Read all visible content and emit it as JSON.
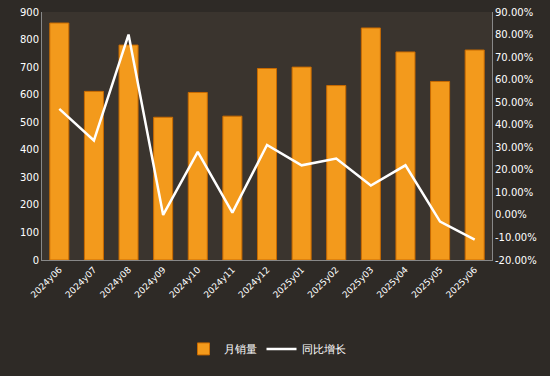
{
  "chart_data": {
    "type": "bar",
    "categories": [
      "2024y06",
      "2024y07",
      "2024y08",
      "2024y09",
      "2024y10",
      "2024y11",
      "2024y12",
      "2025y01",
      "2025y02",
      "2025y03",
      "2025y04",
      "2025y05",
      "2025y06"
    ],
    "series": [
      {
        "name": "月销量",
        "type": "bar",
        "color": "#f39a1c",
        "values": [
          860,
          612,
          780,
          518,
          608,
          522,
          695,
          700,
          633,
          842,
          755,
          648,
          762
        ]
      },
      {
        "name": "同比增长",
        "type": "line",
        "color": "#ffffff",
        "axis": "y2",
        "line_style": "solid",
        "values": [
          47,
          33,
          80,
          0,
          28,
          1,
          31,
          22,
          25,
          13,
          22,
          -3,
          -11
        ]
      }
    ],
    "ylim": [
      0,
      900
    ],
    "yticks": [
      0,
      100,
      200,
      300,
      400,
      500,
      600,
      700,
      800,
      900
    ],
    "y2lim": [
      -20,
      90
    ],
    "y2ticks": [
      {
        "value": -20,
        "label": "-20.00%"
      },
      {
        "value": -10,
        "label": "-10.00%"
      },
      {
        "value": 0,
        "label": "0.00%"
      },
      {
        "value": 10,
        "label": "10.00%"
      },
      {
        "value": 20,
        "label": "20.00%"
      },
      {
        "value": 30,
        "label": "30.00%"
      },
      {
        "value": 40,
        "label": "40.00%"
      },
      {
        "value": 50,
        "label": "50.00%"
      },
      {
        "value": 60,
        "label": "60.00%"
      },
      {
        "value": 70,
        "label": "70.00%"
      },
      {
        "value": 80,
        "label": "80.00%"
      },
      {
        "value": 90,
        "label": "90.00%"
      }
    ],
    "grid": false,
    "legend": "bottom"
  }
}
